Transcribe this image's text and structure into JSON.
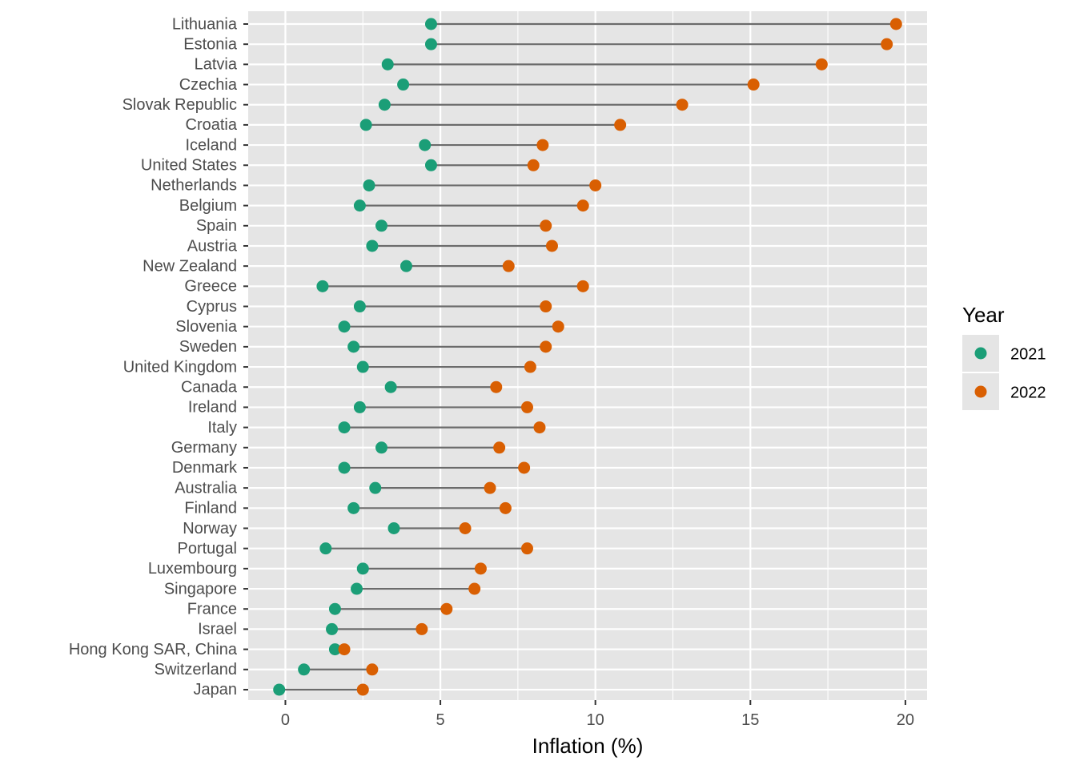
{
  "chart_data": {
    "type": "dumbbell",
    "xlabel": "Inflation (%)",
    "ylabel": "",
    "xlim": [
      -1.2,
      20.7
    ],
    "x_ticks": [
      0,
      5,
      10,
      15,
      20
    ],
    "grid": true,
    "legend": {
      "title": "Year",
      "placement": "right",
      "items": [
        {
          "name": "2021",
          "color": "#1b9e77"
        },
        {
          "name": "2022",
          "color": "#d95f02"
        }
      ]
    },
    "colors": {
      "2021": "#1b9e77",
      "2022": "#d95f02",
      "segment": "#6b6b6b",
      "panel": "#e5e5e5",
      "grid": "#ffffff"
    },
    "categories": [
      "Lithuania",
      "Estonia",
      "Latvia",
      "Czechia",
      "Slovak Republic",
      "Croatia",
      "Iceland",
      "United States",
      "Netherlands",
      "Belgium",
      "Spain",
      "Austria",
      "New Zealand",
      "Greece",
      "Cyprus",
      "Slovenia",
      "Sweden",
      "United Kingdom",
      "Canada",
      "Ireland",
      "Italy",
      "Germany",
      "Denmark",
      "Australia",
      "Finland",
      "Norway",
      "Portugal",
      "Luxembourg",
      "Singapore",
      "France",
      "Israel",
      "Hong Kong SAR, China",
      "Switzerland",
      "Japan"
    ],
    "series": [
      {
        "name": "2021",
        "values": [
          4.7,
          4.7,
          3.3,
          3.8,
          3.2,
          2.6,
          4.5,
          4.7,
          2.7,
          2.4,
          3.1,
          2.8,
          3.9,
          1.2,
          2.4,
          1.9,
          2.2,
          2.5,
          3.4,
          2.4,
          1.9,
          3.1,
          1.9,
          2.9,
          2.2,
          3.5,
          1.3,
          2.5,
          2.3,
          1.6,
          1.5,
          1.6,
          0.6,
          -0.2
        ]
      },
      {
        "name": "2022",
        "values": [
          19.7,
          19.4,
          17.3,
          15.1,
          12.8,
          10.8,
          8.3,
          8.0,
          10.0,
          9.6,
          8.4,
          8.6,
          7.2,
          9.6,
          8.4,
          8.8,
          8.4,
          7.9,
          6.8,
          7.8,
          8.2,
          6.9,
          7.7,
          6.6,
          7.1,
          5.8,
          7.8,
          6.3,
          6.1,
          5.2,
          4.4,
          1.9,
          2.8,
          2.5
        ]
      }
    ]
  }
}
